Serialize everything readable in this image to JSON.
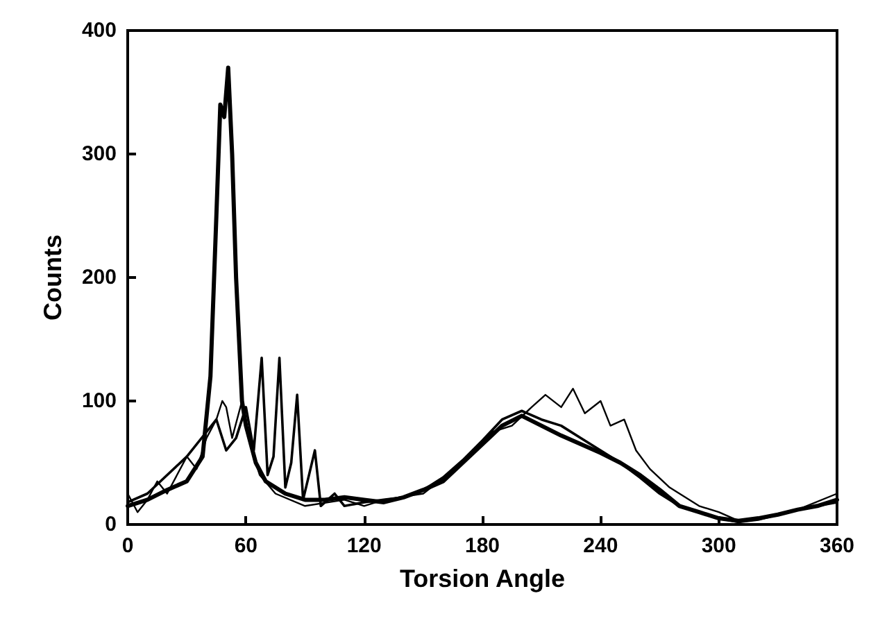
{
  "chart_data": {
    "type": "line",
    "xlabel": "Torsion Angle",
    "ylabel": "Counts",
    "xlim": [
      0,
      360
    ],
    "xticks": [
      0,
      60,
      120,
      180,
      240,
      300,
      360
    ],
    "ylim": [
      0,
      400
    ],
    "yticks": [
      0,
      100,
      200,
      300,
      400
    ],
    "grid": false,
    "marker": "none",
    "line_style": "solid",
    "series": [
      {
        "color": "#000000",
        "x": [
          0,
          10,
          20,
          30,
          38,
          42,
          45,
          47,
          49,
          51,
          53,
          55,
          58,
          60,
          65,
          70,
          80,
          90,
          100,
          110,
          120,
          130,
          140,
          150,
          160,
          170,
          180,
          190,
          200,
          210,
          220,
          230,
          240,
          250,
          260,
          270,
          280,
          290,
          300,
          310,
          320,
          330,
          340,
          350,
          360
        ],
        "values": [
          15,
          20,
          28,
          35,
          55,
          120,
          250,
          340,
          330,
          370,
          300,
          200,
          100,
          80,
          50,
          35,
          25,
          20,
          20,
          22,
          20,
          18,
          22,
          28,
          35,
          50,
          65,
          80,
          88,
          80,
          72,
          65,
          58,
          50,
          40,
          28,
          15,
          10,
          5,
          3,
          5,
          8,
          12,
          15,
          20
        ]
      },
      {
        "color": "#000000",
        "x": [
          0,
          10,
          20,
          30,
          40,
          45,
          50,
          55,
          60,
          64,
          68,
          71,
          74,
          77,
          80,
          83,
          86,
          89,
          92,
          95,
          98,
          105,
          110,
          120,
          130,
          140,
          150,
          160,
          170,
          180,
          190,
          200,
          210,
          220,
          230,
          240,
          250,
          260,
          270,
          280,
          290,
          300,
          310,
          320,
          330,
          340,
          350,
          360
        ],
        "values": [
          18,
          25,
          40,
          55,
          75,
          85,
          60,
          70,
          95,
          60,
          135,
          40,
          55,
          135,
          30,
          50,
          105,
          20,
          40,
          60,
          15,
          25,
          15,
          18,
          20,
          22,
          28,
          38,
          52,
          68,
          85,
          92,
          85,
          80,
          70,
          60,
          50,
          38,
          25,
          15,
          10,
          5,
          2,
          4,
          8,
          12,
          15,
          18
        ]
      },
      {
        "color": "#000000",
        "x": [
          0,
          5,
          10,
          15,
          20,
          25,
          30,
          35,
          40,
          45,
          48,
          50,
          53,
          58,
          63,
          67,
          75,
          90,
          110,
          120,
          130,
          150,
          170,
          185,
          195,
          205,
          212,
          220,
          226,
          232,
          240,
          245,
          252,
          258,
          265,
          275,
          290,
          300,
          310,
          320,
          340,
          360
        ],
        "values": [
          25,
          10,
          20,
          35,
          25,
          40,
          55,
          45,
          70,
          85,
          100,
          95,
          70,
          100,
          60,
          40,
          25,
          15,
          20,
          15,
          20,
          25,
          50,
          75,
          80,
          95,
          105,
          95,
          110,
          90,
          100,
          80,
          85,
          60,
          45,
          30,
          15,
          10,
          3,
          5,
          12,
          25
        ]
      }
    ]
  }
}
